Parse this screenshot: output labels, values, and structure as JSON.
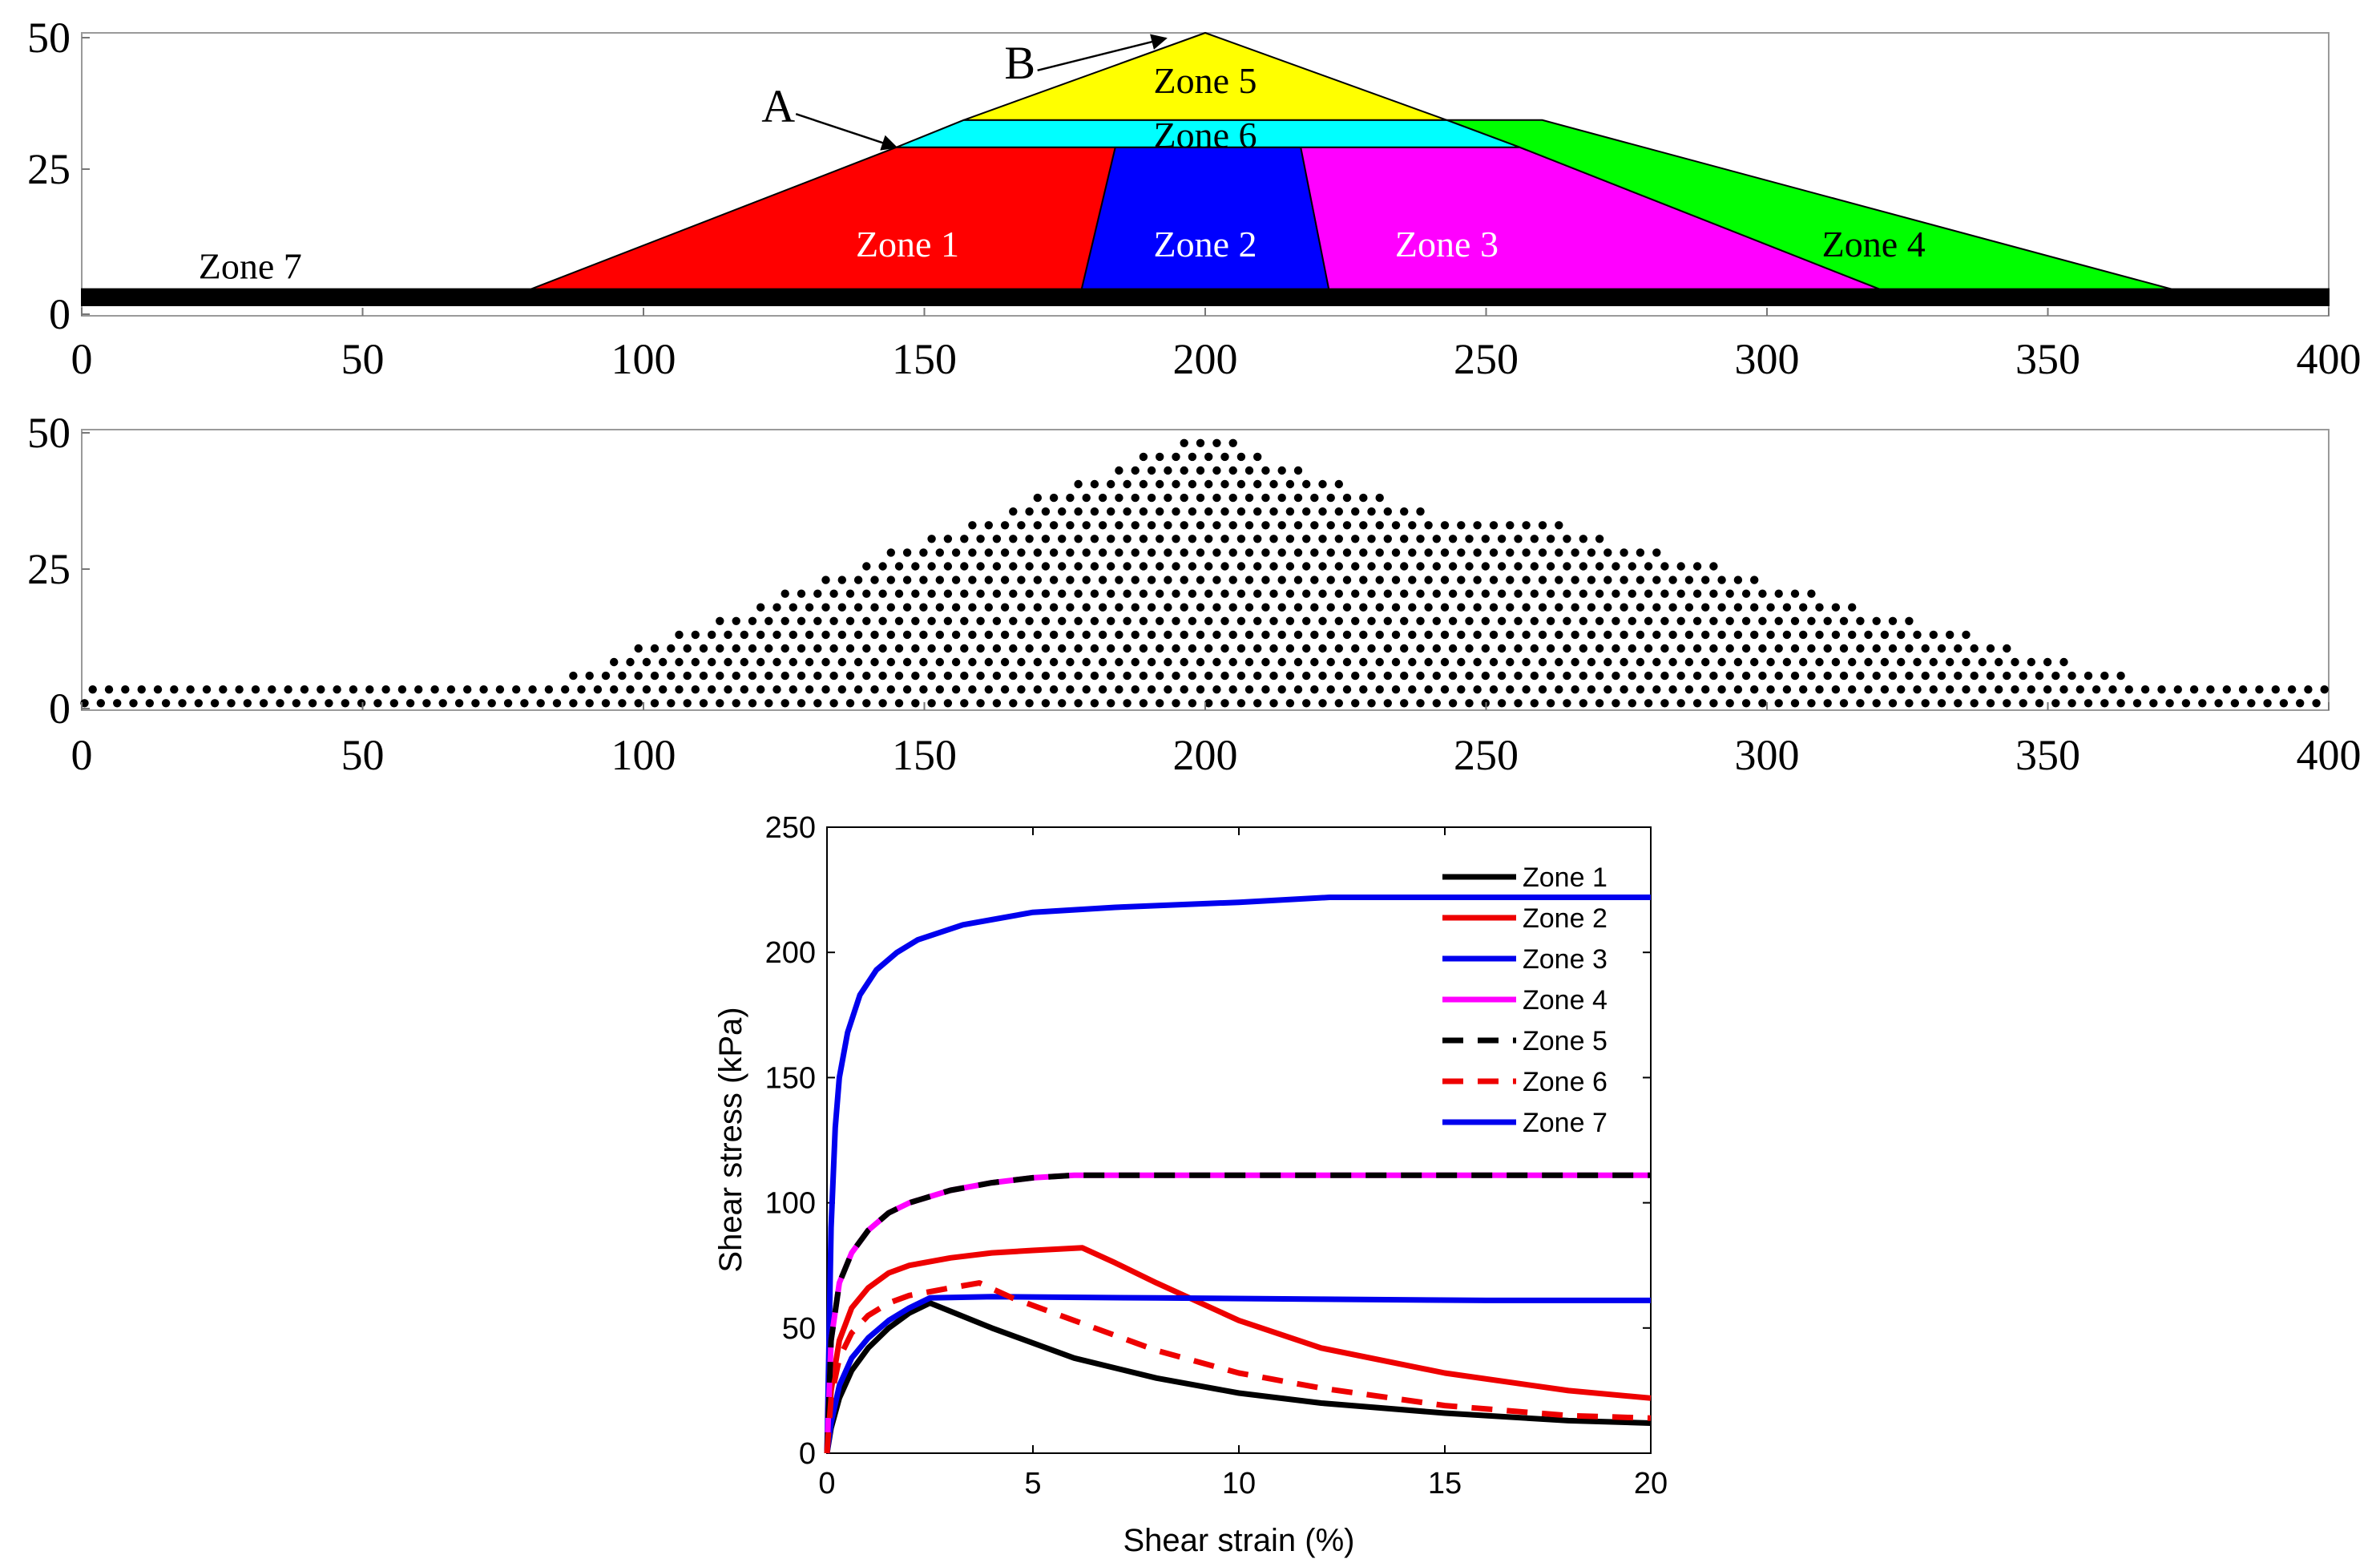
{
  "chart_data": [
    {
      "type": "diagram",
      "title": "",
      "x_ticks": [
        "0",
        "50",
        "100",
        "150",
        "200",
        "250",
        "300",
        "350",
        "400"
      ],
      "y_ticks": [
        "0",
        "25",
        "50"
      ],
      "xlim": [
        0,
        400
      ],
      "ylim": [
        0,
        50
      ],
      "zones": [
        {
          "name": "Zone 7",
          "label": "Zone 7",
          "color": "#000000",
          "polygon": [
            [
              0,
              0
            ],
            [
              400,
              0
            ],
            [
              400,
              3
            ],
            [
              0,
              3
            ]
          ],
          "label_at": [
            30,
            7
          ]
        },
        {
          "name": "Zone 1",
          "label": "Zone 1",
          "color": "#ff0000",
          "polygon": [
            [
              80,
              3
            ],
            [
              145,
              29
            ],
            [
              184,
              29
            ],
            [
              178,
              3
            ]
          ],
          "label_at": [
            147,
            11
          ]
        },
        {
          "name": "Zone 2",
          "label": "Zone 2",
          "color": "#0000ff",
          "polygon": [
            [
              178,
              3
            ],
            [
              184,
              29
            ],
            [
              217,
              29
            ],
            [
              222,
              3
            ]
          ],
          "label_at": [
            200,
            11
          ]
        },
        {
          "name": "Zone 3",
          "label": "Zone 3",
          "color": "#ff00ff",
          "polygon": [
            [
              217,
              29
            ],
            [
              256,
              29
            ],
            [
              320,
              3
            ],
            [
              222,
              3
            ]
          ],
          "label_at": [
            243,
            11
          ]
        },
        {
          "name": "Zone 4",
          "label": "Zone 4",
          "color": "#00ff00",
          "polygon": [
            [
              243,
              34
            ],
            [
              260,
              34
            ],
            [
              372,
              3
            ],
            [
              320,
              3
            ],
            [
              256,
              29
            ]
          ],
          "label_at": [
            319,
            11
          ]
        },
        {
          "name": "Zone 6",
          "label": "Zone 6",
          "color": "#00ffff",
          "polygon": [
            [
              145,
              29
            ],
            [
              256,
              29
            ],
            [
              243,
              34
            ],
            [
              157,
              34
            ]
          ],
          "label_at": [
            200,
            31
          ]
        },
        {
          "name": "Zone 5",
          "label": "Zone 5",
          "color": "#ffff00",
          "polygon": [
            [
              157,
              34
            ],
            [
              243,
              34
            ],
            [
              200,
              50
            ]
          ],
          "label_at": [
            200,
            41
          ]
        }
      ],
      "annotations": [
        {
          "text": "A",
          "at": [
            124,
            36
          ],
          "arrow_to": [
            145,
            29
          ]
        },
        {
          "text": "B",
          "at": [
            167,
            44
          ],
          "arrow_to": [
            193,
            49
          ]
        }
      ]
    },
    {
      "type": "scatter",
      "title": "",
      "x_ticks": [
        "0",
        "50",
        "100",
        "150",
        "200",
        "250",
        "300",
        "350",
        "400"
      ],
      "y_ticks": [
        "0",
        "25",
        "50"
      ],
      "xlim": [
        0,
        400
      ],
      "ylim": [
        0,
        50
      ],
      "point_spacing": 2.9,
      "point_color": "#000000"
    },
    {
      "type": "line",
      "title": "",
      "xlabel": "Shear strain (%)",
      "ylabel": "Shear stress (kPa)",
      "xlim": [
        0,
        20
      ],
      "ylim": [
        0,
        250
      ],
      "x_ticks": [
        "0",
        "5",
        "10",
        "15",
        "20"
      ],
      "y_ticks": [
        "0",
        "50",
        "100",
        "150",
        "200",
        "250"
      ],
      "legend_position": "top-right",
      "series": [
        {
          "name": "Zone 1",
          "color": "#000000",
          "dash": false,
          "x": [
            0,
            0.1,
            0.3,
            0.6,
            1,
            1.5,
            2,
            2.5,
            4,
            6,
            8,
            10,
            12,
            15,
            18,
            20
          ],
          "y": [
            0,
            10,
            22,
            33,
            42,
            50,
            56,
            60,
            50,
            38,
            30,
            24,
            20,
            16,
            13,
            12
          ]
        },
        {
          "name": "Zone 2",
          "color": "#ee0000",
          "dash": false,
          "x": [
            0,
            0.1,
            0.3,
            0.6,
            1,
            1.5,
            2,
            3,
            4,
            5,
            6.2,
            7,
            8,
            10,
            12,
            15,
            18,
            20
          ],
          "y": [
            0,
            25,
            45,
            58,
            66,
            72,
            75,
            78,
            80,
            81,
            82,
            76,
            68,
            53,
            42,
            32,
            25,
            22
          ]
        },
        {
          "name": "Zone 3",
          "color": "#0000ee",
          "dash": false,
          "x": [
            0,
            0.1,
            0.2,
            0.3,
            0.5,
            0.8,
            1.2,
            1.7,
            2.2,
            3.3,
            5,
            7,
            10,
            12.2,
            15,
            20
          ],
          "y": [
            0,
            90,
            130,
            150,
            168,
            183,
            193,
            200,
            205,
            211,
            216,
            218,
            220,
            222,
            222,
            222
          ]
        },
        {
          "name": "Zone 4",
          "color": "#ff00ff",
          "dash": false,
          "x": [
            0,
            0.1,
            0.3,
            0.6,
            1,
            1.5,
            2,
            3,
            4,
            5,
            6,
            8,
            10,
            15,
            20
          ],
          "y": [
            0,
            45,
            68,
            80,
            89,
            96,
            100,
            105,
            108,
            110,
            111,
            111,
            111,
            111,
            111
          ]
        },
        {
          "name": "Zone 5",
          "color": "#000000",
          "dash": true,
          "x": [
            0,
            0.1,
            0.3,
            0.6,
            1,
            1.5,
            2,
            3,
            4,
            5,
            6,
            8,
            10,
            15,
            20
          ],
          "y": [
            0,
            45,
            68,
            80,
            89,
            96,
            100,
            105,
            108,
            110,
            111,
            111,
            111,
            111,
            111
          ]
        },
        {
          "name": "Zone 6",
          "color": "#ee0000",
          "dash": true,
          "x": [
            0,
            0.1,
            0.3,
            0.6,
            1,
            1.5,
            2,
            3,
            3.7,
            4.5,
            6,
            8,
            10,
            12,
            15,
            18,
            20
          ],
          "y": [
            0,
            22,
            38,
            48,
            55,
            60,
            63,
            66,
            68,
            62,
            53,
            41,
            32,
            26,
            19,
            15,
            14
          ]
        },
        {
          "name": "Zone 7",
          "color": "#0000ee",
          "dash": false,
          "x": [
            0,
            0.1,
            0.3,
            0.6,
            1,
            1.5,
            2,
            2.5,
            4,
            8,
            12,
            16,
            20
          ],
          "y": [
            0,
            12,
            27,
            38,
            46,
            53,
            58,
            62,
            62.5,
            62,
            61.5,
            61,
            61
          ]
        }
      ]
    }
  ]
}
